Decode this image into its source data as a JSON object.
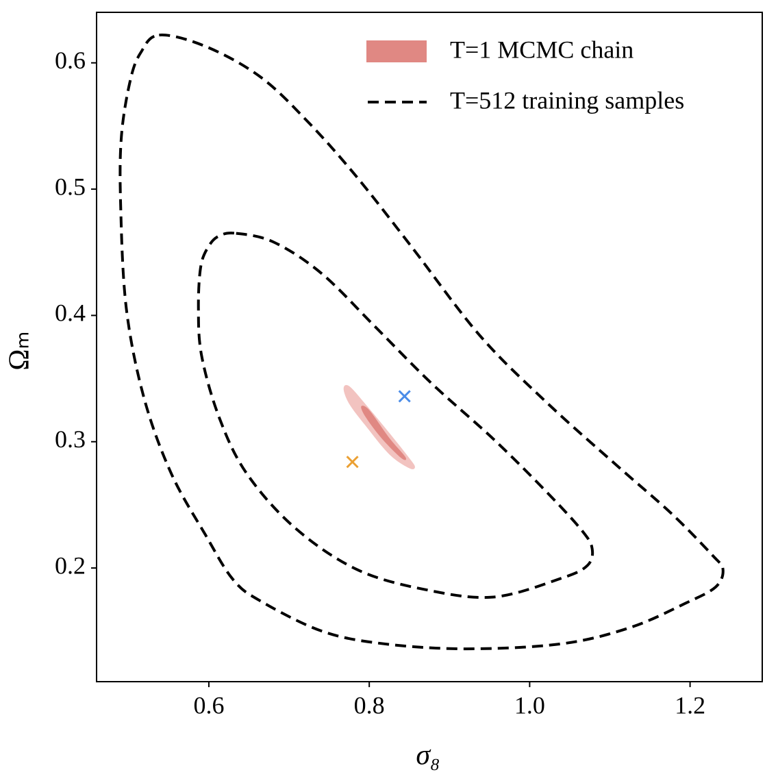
{
  "chart_data": {
    "type": "contour",
    "xlabel": "σ₈",
    "ylabel": "Ωₘ",
    "xlim": [
      0.46,
      1.29
    ],
    "ylim": [
      0.11,
      0.64
    ],
    "xticks": [
      0.6,
      0.8,
      {
        "value": 1,
        "label": "1.0"
      },
      1.2
    ],
    "yticks": [
      0.2,
      0.3,
      0.4,
      0.5,
      0.6
    ],
    "legend": "upper right",
    "series": [
      {
        "name": "T=1 MCMC chain",
        "color": "#e08883",
        "style": "filled",
        "level_colors": [
          "#f2c3c0",
          "#e08883"
        ],
        "levels": [
          {
            "x": [
              0.768,
              0.775,
              0.795,
              0.825,
              0.85,
              0.857,
              0.85,
              0.825,
              0.795,
              0.775
            ],
            "y": [
              0.342,
              0.344,
              0.33,
              0.307,
              0.287,
              0.28,
              0.279,
              0.29,
              0.313,
              0.33
            ]
          },
          {
            "x": [
              0.79,
              0.8,
              0.825,
              0.845,
              0.84,
              0.815,
              0.795
            ],
            "y": [
              0.328,
              0.325,
              0.303,
              0.288,
              0.287,
              0.303,
              0.32
            ]
          }
        ]
      },
      {
        "name": "T=512 training samples",
        "color": "#000000",
        "style": "dashed",
        "levels": [
          {
            "x": [
              0.538,
              0.596,
              0.664,
              0.724,
              0.784,
              0.852,
              0.938,
              1.023,
              1.109,
              1.177,
              1.228,
              1.241,
              1.232,
              1.194,
              1.126,
              1.04,
              0.921,
              0.818,
              0.741,
              0.664,
              0.63,
              0.596,
              0.553,
              0.519,
              0.497,
              0.49,
              0.491,
              0.502,
              0.515
            ],
            "y": [
              0.622,
              0.613,
              0.589,
              0.553,
              0.51,
              0.455,
              0.384,
              0.33,
              0.281,
              0.243,
              0.21,
              0.199,
              0.185,
              0.172,
              0.153,
              0.14,
              0.136,
              0.14,
              0.15,
              0.174,
              0.191,
              0.226,
              0.275,
              0.335,
              0.406,
              0.488,
              0.542,
              0.586,
              0.608
            ]
          },
          {
            "x": [
              0.634,
              0.681,
              0.741,
              0.809,
              0.878,
              0.955,
              1.023,
              1.066,
              1.078,
              1.072,
              1.04,
              0.955,
              0.869,
              0.784,
              0.707,
              0.647,
              0.613,
              0.591,
              0.587,
              0.59,
              0.6,
              0.613
            ],
            "y": [
              0.465,
              0.458,
              0.433,
              0.39,
              0.346,
              0.302,
              0.259,
              0.229,
              0.215,
              0.202,
              0.192,
              0.177,
              0.183,
              0.199,
              0.232,
              0.275,
              0.319,
              0.368,
              0.406,
              0.439,
              0.455,
              0.463
            ]
          }
        ]
      }
    ],
    "points": [
      {
        "x": 0.844,
        "y": 0.336,
        "color": "#4a8ce8"
      },
      {
        "x": 0.779,
        "y": 0.284,
        "color": "#eba033"
      }
    ]
  }
}
